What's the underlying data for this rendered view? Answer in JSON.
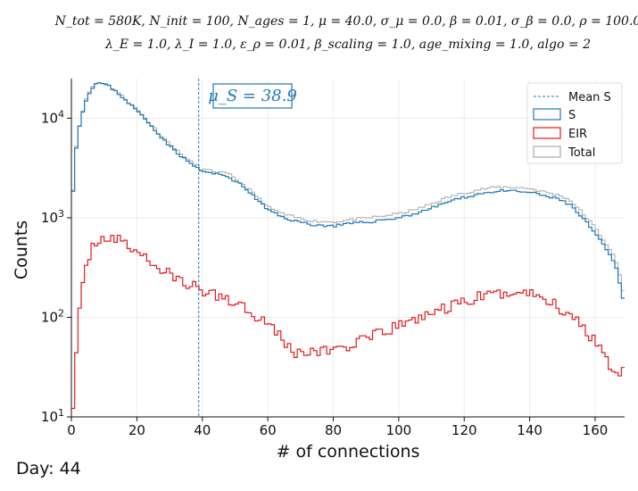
{
  "title_line1": "N_tot = 580K, N_init = 100, N_ages = 1, μ = 40.0, σ_μ = 0.0, β = 0.01, σ_β = 0.0, ρ = 100.0",
  "title_line2": "λ_E = 1.0, λ_I = 1.0, ε_ρ = 0.01, β_scaling = 1.0, age_mixing = 1.0, algo = 2",
  "day_label": "Day: 44",
  "annotation": "μ_S = 38.9",
  "colors": {
    "S": "#1f77b4",
    "EIR": "#e31a1c",
    "Total": "#aaaaaa",
    "mean": "#1f77b4"
  },
  "chart_data": {
    "type": "step-histogram",
    "xlabel": "# of connections",
    "ylabel": "Counts",
    "xlim": [
      0,
      169
    ],
    "ylim": [
      10,
      25000
    ],
    "yscale": "log",
    "grid": true,
    "legend_position": "top-right",
    "xticks": [
      0,
      20,
      40,
      60,
      80,
      100,
      120,
      140,
      160
    ],
    "yticks": [
      {
        "v": 10,
        "label": "10^1"
      },
      {
        "v": 100,
        "label": "10^2"
      },
      {
        "v": 1000,
        "label": "10^3"
      },
      {
        "v": 10000,
        "label": "10^4"
      }
    ],
    "mean_S": 38.9,
    "legend": [
      "Mean S",
      "S",
      "EIR",
      "Total"
    ],
    "knots": {
      "S": [
        [
          0,
          950
        ],
        [
          1,
          3800
        ],
        [
          2,
          7000
        ],
        [
          3,
          10000
        ],
        [
          4,
          13500
        ],
        [
          5,
          17000
        ],
        [
          6,
          19500
        ],
        [
          7,
          21500
        ],
        [
          8,
          22500
        ],
        [
          9,
          22500
        ],
        [
          10,
          22000
        ],
        [
          12,
          20500
        ],
        [
          15,
          17000
        ],
        [
          20,
          12000
        ],
        [
          25,
          8000
        ],
        [
          30,
          5300
        ],
        [
          35,
          3800
        ],
        [
          40,
          2900
        ],
        [
          43,
          2800
        ],
        [
          48,
          2600
        ],
        [
          53,
          2000
        ],
        [
          57,
          1500
        ],
        [
          60,
          1200
        ],
        [
          65,
          1000
        ],
        [
          70,
          900
        ],
        [
          75,
          840
        ],
        [
          80,
          830
        ],
        [
          85,
          870
        ],
        [
          90,
          900
        ],
        [
          95,
          950
        ],
        [
          100,
          1000
        ],
        [
          105,
          1100
        ],
        [
          110,
          1250
        ],
        [
          115,
          1450
        ],
        [
          120,
          1600
        ],
        [
          125,
          1750
        ],
        [
          130,
          1850
        ],
        [
          135,
          1850
        ],
        [
          140,
          1800
        ],
        [
          145,
          1650
        ],
        [
          150,
          1500
        ],
        [
          153,
          1300
        ],
        [
          156,
          1000
        ],
        [
          159,
          780
        ],
        [
          162,
          560
        ],
        [
          165,
          400
        ],
        [
          167,
          280
        ],
        [
          168,
          180
        ],
        [
          169,
          130
        ]
      ],
      "Total": [
        [
          0,
          980
        ],
        [
          1,
          3900
        ],
        [
          2,
          7100
        ],
        [
          3,
          10100
        ],
        [
          4,
          13700
        ],
        [
          5,
          17200
        ],
        [
          6,
          19800
        ],
        [
          7,
          21800
        ],
        [
          8,
          22800
        ],
        [
          9,
          22800
        ],
        [
          10,
          22300
        ],
        [
          12,
          20800
        ],
        [
          15,
          17300
        ],
        [
          20,
          12300
        ],
        [
          25,
          8200
        ],
        [
          30,
          5500
        ],
        [
          35,
          3950
        ],
        [
          40,
          3050
        ],
        [
          43,
          2950
        ],
        [
          48,
          2750
        ],
        [
          53,
          2100
        ],
        [
          57,
          1600
        ],
        [
          60,
          1280
        ],
        [
          65,
          1080
        ],
        [
          70,
          980
        ],
        [
          75,
          920
        ],
        [
          80,
          910
        ],
        [
          85,
          950
        ],
        [
          90,
          990
        ],
        [
          95,
          1040
        ],
        [
          100,
          1100
        ],
        [
          105,
          1200
        ],
        [
          110,
          1380
        ],
        [
          115,
          1600
        ],
        [
          120,
          1780
        ],
        [
          125,
          1930
        ],
        [
          130,
          2030
        ],
        [
          135,
          2030
        ],
        [
          140,
          1970
        ],
        [
          145,
          1800
        ],
        [
          150,
          1650
        ],
        [
          153,
          1450
        ],
        [
          156,
          1120
        ],
        [
          159,
          880
        ],
        [
          162,
          640
        ],
        [
          165,
          460
        ],
        [
          167,
          320
        ],
        [
          168,
          220
        ],
        [
          169,
          160
        ]
      ],
      "EIR": [
        [
          0,
          10
        ],
        [
          1,
          20
        ],
        [
          2,
          80
        ],
        [
          3,
          150
        ],
        [
          4,
          260
        ],
        [
          5,
          380
        ],
        [
          6,
          480
        ],
        [
          7,
          560
        ],
        [
          8,
          610
        ],
        [
          10,
          640
        ],
        [
          12,
          630
        ],
        [
          15,
          580
        ],
        [
          20,
          470
        ],
        [
          25,
          340
        ],
        [
          30,
          270
        ],
        [
          35,
          220
        ],
        [
          40,
          185
        ],
        [
          45,
          165
        ],
        [
          50,
          145
        ],
        [
          55,
          115
        ],
        [
          60,
          90
        ],
        [
          63,
          72
        ],
        [
          65,
          55
        ],
        [
          68,
          45
        ],
        [
          70,
          45
        ],
        [
          75,
          45
        ],
        [
          80,
          48
        ],
        [
          85,
          52
        ],
        [
          90,
          60
        ],
        [
          95,
          70
        ],
        [
          100,
          82
        ],
        [
          105,
          96
        ],
        [
          110,
          110
        ],
        [
          115,
          125
        ],
        [
          120,
          145
        ],
        [
          125,
          160
        ],
        [
          130,
          172
        ],
        [
          135,
          180
        ],
        [
          140,
          175
        ],
        [
          145,
          155
        ],
        [
          150,
          120
        ],
        [
          155,
          90
        ],
        [
          160,
          60
        ],
        [
          163,
          43
        ],
        [
          165,
          32
        ],
        [
          167,
          24
        ],
        [
          168,
          32
        ],
        [
          169,
          40
        ]
      ]
    }
  }
}
